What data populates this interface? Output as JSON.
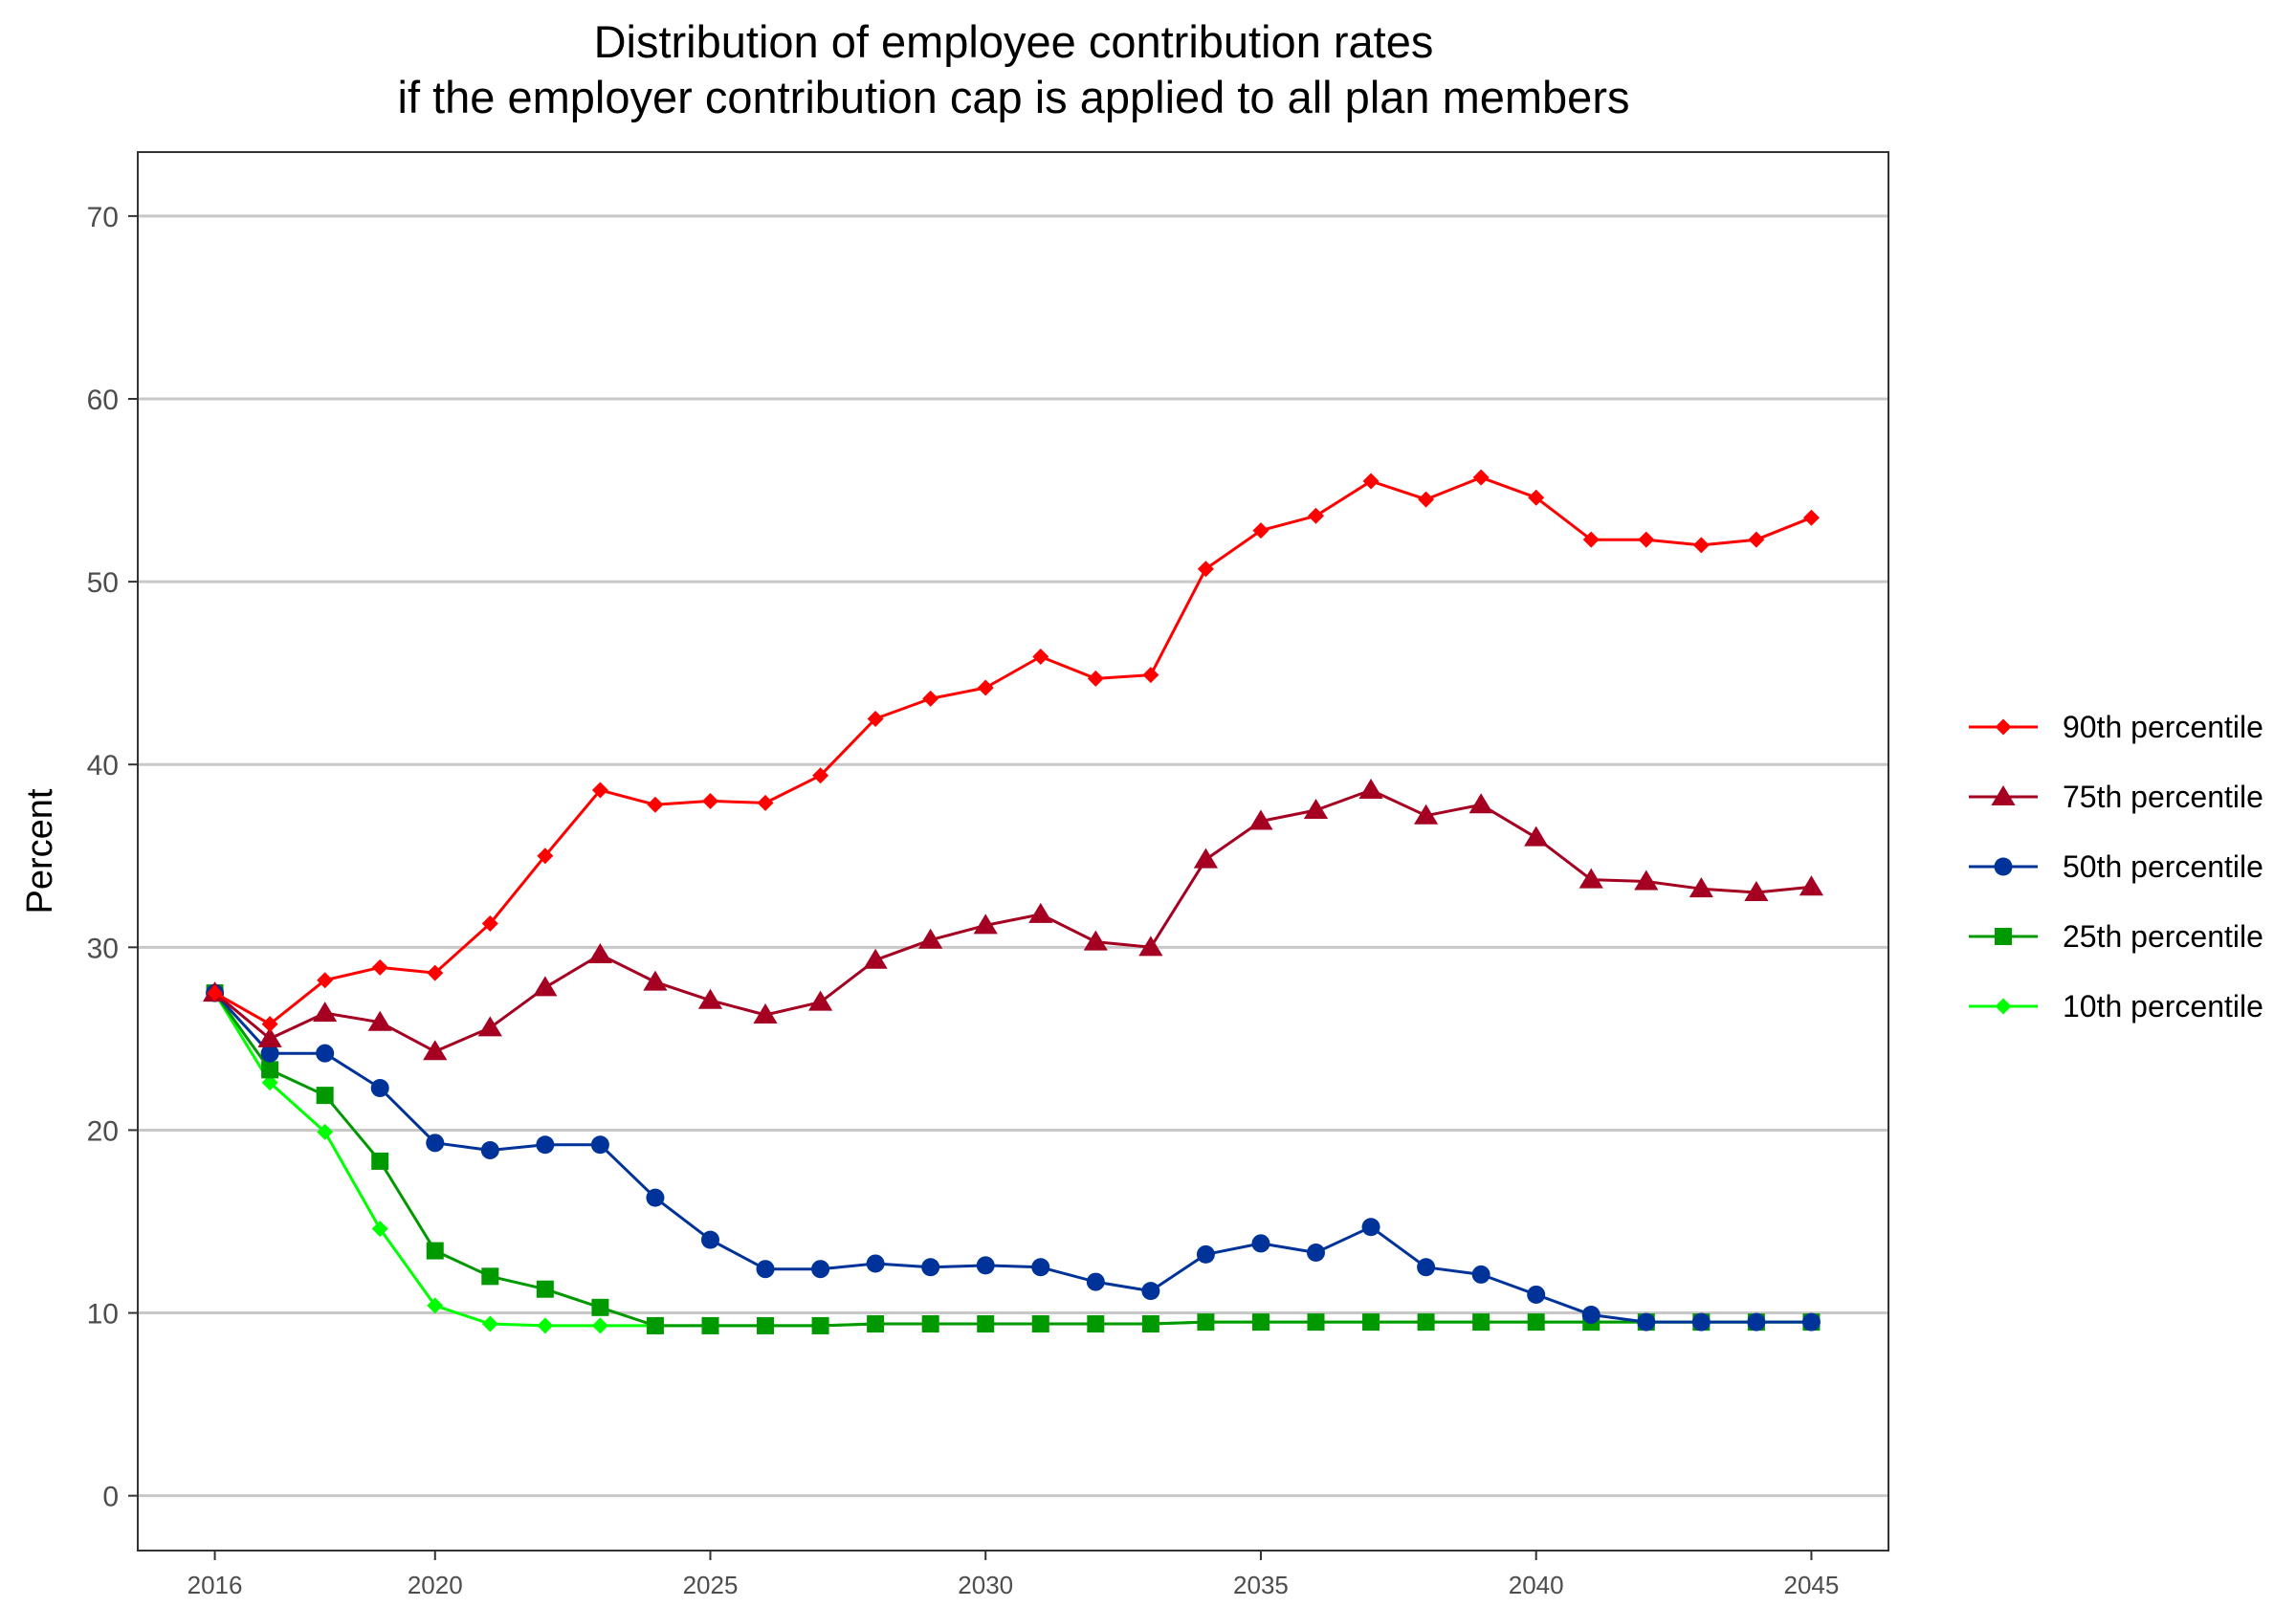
{
  "chart_data": {
    "type": "line",
    "title": "Distribution of employee contribution rates",
    "subtitle": "if the employer contribution cap is applied to all plan members",
    "xlabel": "",
    "ylabel": "Percent",
    "xlim": [
      2014.6,
      2046.4
    ],
    "ylim": [
      -3,
      73.5
    ],
    "x_ticks": [
      2016,
      2020,
      2025,
      2030,
      2035,
      2040,
      2045
    ],
    "y_ticks": [
      0,
      10,
      20,
      30,
      40,
      50,
      60,
      70
    ],
    "grid": "horizontal",
    "legend_position": "right",
    "x": [
      2016,
      2017,
      2018,
      2019,
      2020,
      2021,
      2022,
      2023,
      2024,
      2025,
      2026,
      2027,
      2028,
      2029,
      2030,
      2031,
      2032,
      2033,
      2034,
      2035,
      2036,
      2037,
      2038,
      2039,
      2040,
      2041,
      2042,
      2043,
      2044,
      2045
    ],
    "series": [
      {
        "name": "90th percentile",
        "color": "#FF0000",
        "marker": "diamond",
        "values": [
          27.5,
          25.8,
          28.2,
          28.9,
          28.6,
          31.3,
          35.0,
          38.6,
          37.8,
          38.0,
          37.9,
          39.4,
          42.5,
          43.6,
          44.2,
          45.9,
          44.7,
          44.9,
          50.7,
          52.8,
          53.6,
          55.5,
          54.5,
          55.7,
          54.6,
          52.3,
          52.3,
          52.0,
          52.3,
          53.5
        ]
      },
      {
        "name": "75th percentile",
        "color": "#A50021",
        "marker": "triangle",
        "values": [
          27.5,
          25.0,
          26.4,
          25.9,
          24.3,
          25.6,
          27.8,
          29.6,
          28.1,
          27.1,
          26.3,
          27.0,
          29.3,
          30.4,
          31.2,
          31.8,
          30.3,
          30.0,
          34.8,
          36.9,
          37.5,
          38.6,
          37.2,
          37.8,
          36.0,
          33.7,
          33.6,
          33.2,
          33.0,
          33.3
        ]
      },
      {
        "name": "50th percentile",
        "color": "#003399",
        "marker": "circle",
        "values": [
          27.5,
          24.2,
          24.2,
          22.3,
          19.3,
          18.9,
          19.2,
          19.2,
          16.3,
          14.0,
          12.4,
          12.4,
          12.7,
          12.5,
          12.6,
          12.5,
          11.7,
          11.2,
          13.2,
          13.8,
          13.3,
          14.7,
          12.5,
          12.1,
          11.0,
          9.9,
          9.5,
          9.5,
          9.5,
          9.5
        ]
      },
      {
        "name": "25th percentile",
        "color": "#009900",
        "marker": "square",
        "values": [
          27.5,
          23.3,
          21.9,
          18.3,
          13.4,
          12.0,
          11.3,
          10.3,
          9.3,
          9.3,
          9.3,
          9.3,
          9.4,
          9.4,
          9.4,
          9.4,
          9.4,
          9.4,
          9.5,
          9.5,
          9.5,
          9.5,
          9.5,
          9.5,
          9.5,
          9.5,
          9.5,
          9.5,
          9.5,
          9.5
        ]
      },
      {
        "name": "10th percentile",
        "color": "#00FF00",
        "marker": "diamond",
        "values": [
          27.5,
          22.6,
          19.9,
          14.6,
          10.4,
          9.4,
          9.3,
          9.3,
          9.3,
          9.3,
          9.3,
          9.3,
          9.4,
          9.4,
          9.4,
          9.4,
          9.4,
          9.4,
          9.5,
          9.5,
          9.5,
          9.5,
          9.5,
          9.5,
          9.5,
          9.5,
          9.5,
          9.5,
          9.5,
          9.5
        ]
      }
    ]
  }
}
